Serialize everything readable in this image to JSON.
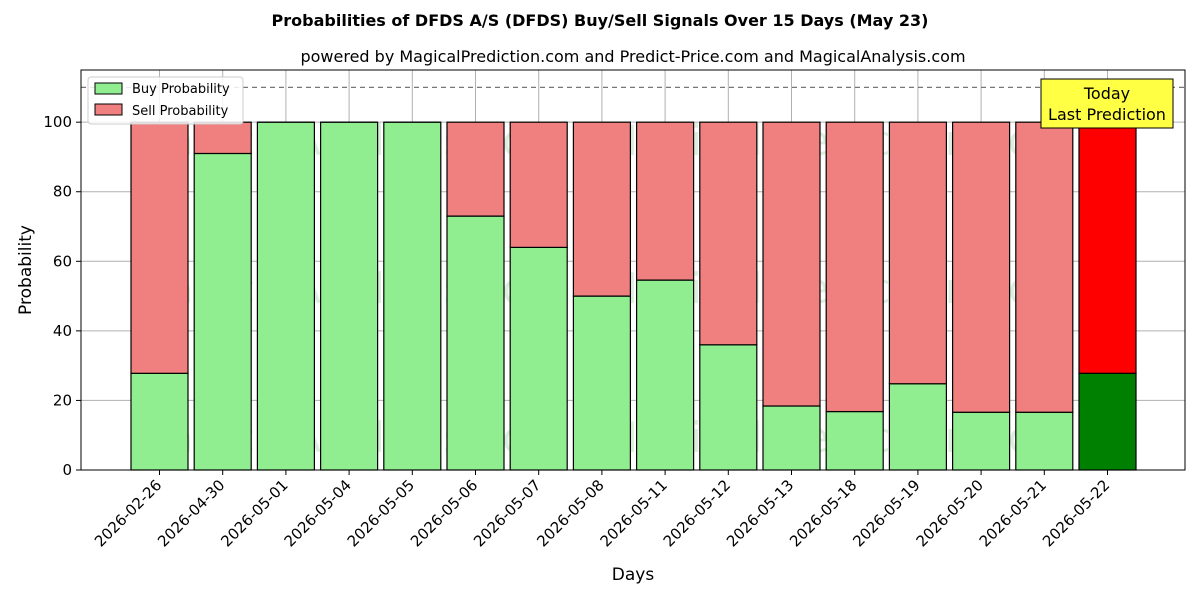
{
  "chart_data": {
    "type": "bar",
    "stacked": true,
    "title": "Probabilities of DFDS A/S (DFDS) Buy/Sell Signals Over 15 Days (May 23)",
    "subtitle": "powered by MagicalPrediction.com and Predict-Price.com and MagicalAnalysis.com",
    "xlabel": "Days",
    "ylabel": "Probability",
    "ylim": [
      0,
      115
    ],
    "yticks": [
      0,
      20,
      40,
      60,
      80,
      100
    ],
    "grid": true,
    "legend_position": "top-left",
    "reference_line": 110,
    "categories": [
      "2026-02-26",
      "2026-04-30",
      "2026-05-01",
      "2026-05-04",
      "2026-05-05",
      "2026-05-06",
      "2026-05-07",
      "2026-05-08",
      "2026-05-11",
      "2026-05-12",
      "2026-05-13",
      "2026-05-18",
      "2026-05-19",
      "2026-05-20",
      "2026-05-21",
      "2026-05-22"
    ],
    "series": [
      {
        "name": "Buy Probability",
        "color": "#90ee90",
        "highlight_color": "#008000",
        "values": [
          27.8,
          91.0,
          100,
          100,
          100,
          73.0,
          64.0,
          50.0,
          54.6,
          36.0,
          18.4,
          16.8,
          24.8,
          16.6,
          16.6,
          27.8
        ]
      },
      {
        "name": "Sell Probability",
        "color": "#f08080",
        "highlight_color": "#ff0000",
        "values": [
          72.2,
          9.0,
          0,
          0,
          0,
          27.0,
          36.0,
          50.0,
          45.4,
          64.0,
          81.6,
          83.2,
          75.2,
          83.4,
          83.4,
          72.2
        ]
      }
    ],
    "highlight_index": 15,
    "annotation": {
      "line1": "Today",
      "line2": "Last Prediction",
      "color": "#ffff44"
    },
    "watermarks": [
      "MagicalAnalysis.com",
      "MagicalPrediction.com"
    ]
  }
}
